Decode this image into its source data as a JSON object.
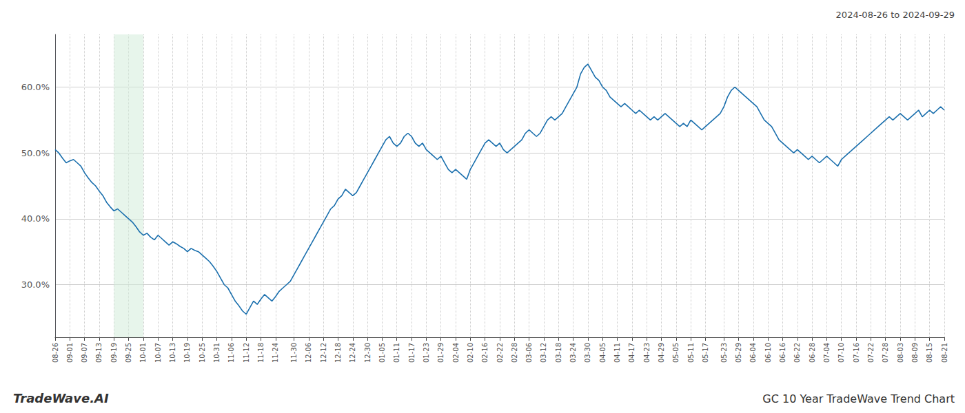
{
  "chart_data": {
    "type": "line",
    "title": "GC 10 Year TradeWave Trend Chart",
    "subtitle": "2024-08-26 to 2024-09-29",
    "annotations": [
      "TradeWave.AI"
    ],
    "color": "#1a6fad",
    "grid": true,
    "shade": {
      "start": "09-19",
      "end": "10-01",
      "color": "#d4edda"
    },
    "ylim": [
      22,
      68
    ],
    "yticks": [
      {
        "value": 30.0,
        "label": "30.0%"
      },
      {
        "value": 40.0,
        "label": "40.0%"
      },
      {
        "value": 50.0,
        "label": "50.0%"
      },
      {
        "value": 60.0,
        "label": "60.0%"
      }
    ],
    "categories": [
      "08-26",
      null,
      null,
      null,
      "09-01",
      null,
      null,
      null,
      "09-07",
      null,
      null,
      null,
      "09-13",
      null,
      null,
      null,
      "09-19",
      null,
      null,
      null,
      "09-25",
      null,
      null,
      null,
      "10-01",
      null,
      null,
      null,
      "10-07",
      null,
      null,
      null,
      "10-13",
      null,
      null,
      null,
      "10-19",
      null,
      null,
      null,
      "10-25",
      null,
      null,
      null,
      "10-31",
      null,
      null,
      null,
      "11-06",
      null,
      null,
      null,
      "11-12",
      null,
      null,
      null,
      "11-18",
      null,
      null,
      null,
      "11-24",
      null,
      null,
      null,
      null,
      "11-30",
      null,
      null,
      null,
      "12-06",
      null,
      null,
      null,
      "12-12",
      null,
      null,
      null,
      "12-18",
      null,
      null,
      null,
      "12-24",
      null,
      null,
      null,
      "12-30",
      null,
      null,
      null,
      "01-05",
      null,
      null,
      null,
      "01-11",
      null,
      null,
      null,
      "01-17",
      null,
      null,
      null,
      "01-23",
      null,
      null,
      null,
      "01-29",
      null,
      null,
      null,
      "02-04",
      null,
      null,
      null,
      "02-10",
      null,
      null,
      null,
      "02-16",
      null,
      null,
      null,
      "02-22",
      null,
      null,
      null,
      "02-28",
      null,
      null,
      null,
      "03-06",
      null,
      null,
      null,
      "03-12",
      null,
      null,
      null,
      "03-18",
      null,
      null,
      null,
      "03-24",
      null,
      null,
      null,
      "03-30",
      null,
      null,
      null,
      "04-05",
      null,
      null,
      null,
      "04-11",
      null,
      null,
      null,
      "04-17",
      null,
      null,
      null,
      "04-23",
      null,
      null,
      null,
      "04-29",
      null,
      null,
      null,
      "05-05",
      null,
      null,
      null,
      "05-11",
      null,
      null,
      null,
      "05-17",
      null,
      null,
      null,
      null,
      "05-23",
      null,
      null,
      null,
      "05-29",
      null,
      null,
      null,
      "06-04",
      null,
      null,
      null,
      "06-10",
      null,
      null,
      null,
      "06-16",
      null,
      null,
      null,
      "06-22",
      null,
      null,
      null,
      "06-28",
      null,
      null,
      null,
      "07-04",
      null,
      null,
      null,
      "07-10",
      null,
      null,
      null,
      "07-16",
      null,
      null,
      null,
      "07-22",
      null,
      null,
      null,
      "07-28",
      null,
      null,
      null,
      "08-03",
      null,
      null,
      null,
      "08-09",
      null,
      null,
      null,
      "08-15",
      null,
      null,
      null,
      "08-21"
    ],
    "values": [
      50.5,
      50.0,
      49.2,
      48.5,
      48.8,
      49.0,
      48.5,
      48.0,
      47.0,
      46.2,
      45.5,
      45.0,
      44.2,
      43.5,
      42.5,
      41.8,
      41.2,
      41.5,
      41.0,
      40.5,
      40.0,
      39.5,
      38.8,
      38.0,
      37.5,
      37.8,
      37.2,
      36.8,
      37.5,
      37.0,
      36.5,
      36.0,
      36.5,
      36.2,
      35.8,
      35.5,
      35.0,
      35.5,
      35.2,
      35.0,
      34.5,
      34.0,
      33.5,
      32.8,
      32.0,
      31.0,
      30.0,
      29.5,
      28.5,
      27.5,
      26.8,
      26.0,
      25.5,
      26.5,
      27.5,
      27.0,
      27.8,
      28.5,
      28.0,
      27.5,
      28.2,
      29.0,
      29.5,
      30.0,
      30.5,
      31.5,
      32.5,
      33.5,
      34.5,
      35.5,
      36.5,
      37.5,
      38.5,
      39.5,
      40.5,
      41.5,
      42.0,
      43.0,
      43.5,
      44.5,
      44.0,
      43.5,
      44.0,
      45.0,
      46.0,
      47.0,
      48.0,
      49.0,
      50.0,
      51.0,
      52.0,
      52.5,
      51.5,
      51.0,
      51.5,
      52.5,
      53.0,
      52.5,
      51.5,
      51.0,
      51.5,
      50.5,
      50.0,
      49.5,
      49.0,
      49.5,
      48.5,
      47.5,
      47.0,
      47.5,
      47.0,
      46.5,
      46.0,
      47.5,
      48.5,
      49.5,
      50.5,
      51.5,
      52.0,
      51.5,
      51.0,
      51.5,
      50.5,
      50.0,
      50.5,
      51.0,
      51.5,
      52.0,
      53.0,
      53.5,
      53.0,
      52.5,
      53.0,
      54.0,
      55.0,
      55.5,
      55.0,
      55.5,
      56.0,
      57.0,
      58.0,
      59.0,
      60.0,
      62.0,
      63.0,
      63.5,
      62.5,
      61.5,
      61.0,
      60.0,
      59.5,
      58.5,
      58.0,
      57.5,
      57.0,
      57.5,
      57.0,
      56.5,
      56.0,
      56.5,
      56.0,
      55.5,
      55.0,
      55.5,
      55.0,
      55.5,
      56.0,
      55.5,
      55.0,
      54.5,
      54.0,
      54.5,
      54.0,
      55.0,
      54.5,
      54.0,
      53.5,
      54.0,
      54.5,
      55.0,
      55.5,
      56.0,
      57.0,
      58.5,
      59.5,
      60.0,
      59.5,
      59.0,
      58.5,
      58.0,
      57.5,
      57.0,
      56.0,
      55.0,
      54.5,
      54.0,
      53.0,
      52.0,
      51.5,
      51.0,
      50.5,
      50.0,
      50.5,
      50.0,
      49.5,
      49.0,
      49.5,
      49.0,
      48.5,
      49.0,
      49.5,
      49.0,
      48.5,
      48.0,
      49.0,
      49.5,
      50.0,
      50.5,
      51.0,
      51.5,
      52.0,
      52.5,
      53.0,
      53.5,
      54.0,
      54.5,
      55.0,
      55.5,
      55.0,
      55.5,
      56.0,
      55.5,
      55.0,
      55.5,
      56.0,
      56.5,
      55.5,
      56.0,
      56.5,
      56.0,
      56.5,
      57.0,
      56.5
    ]
  }
}
